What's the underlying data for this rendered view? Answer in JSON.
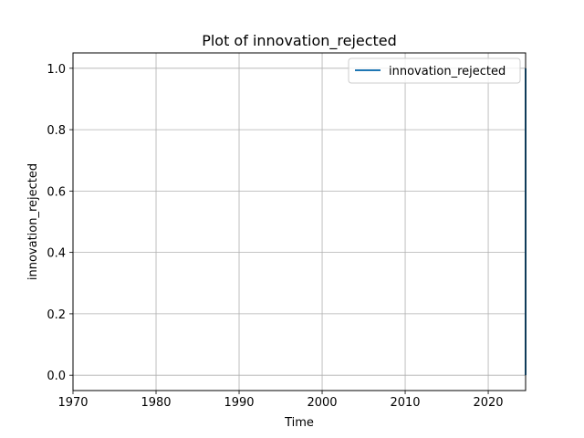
{
  "chart_data": {
    "type": "line",
    "title": "Plot of innovation_rejected",
    "xlabel": "Time",
    "ylabel": "innovation_rejected",
    "xlim": [
      1970,
      2024.5
    ],
    "ylim": [
      -0.05,
      1.05
    ],
    "x_ticks": [
      "1970",
      "1980",
      "1990",
      "2000",
      "2010",
      "2020"
    ],
    "x_tick_values": [
      1970,
      1980,
      1990,
      2000,
      2010,
      2020
    ],
    "y_ticks": [
      "0.0",
      "0.2",
      "0.4",
      "0.6",
      "0.8",
      "1.0"
    ],
    "y_tick_values": [
      0.0,
      0.2,
      0.4,
      0.6,
      0.8,
      1.0
    ],
    "grid": true,
    "legend_position": "top-right",
    "series": [
      {
        "name": "innovation_rejected",
        "color": "#1f77b4",
        "x": [
          2024.5,
          2024.5
        ],
        "y": [
          0.0,
          1.0
        ]
      }
    ]
  }
}
